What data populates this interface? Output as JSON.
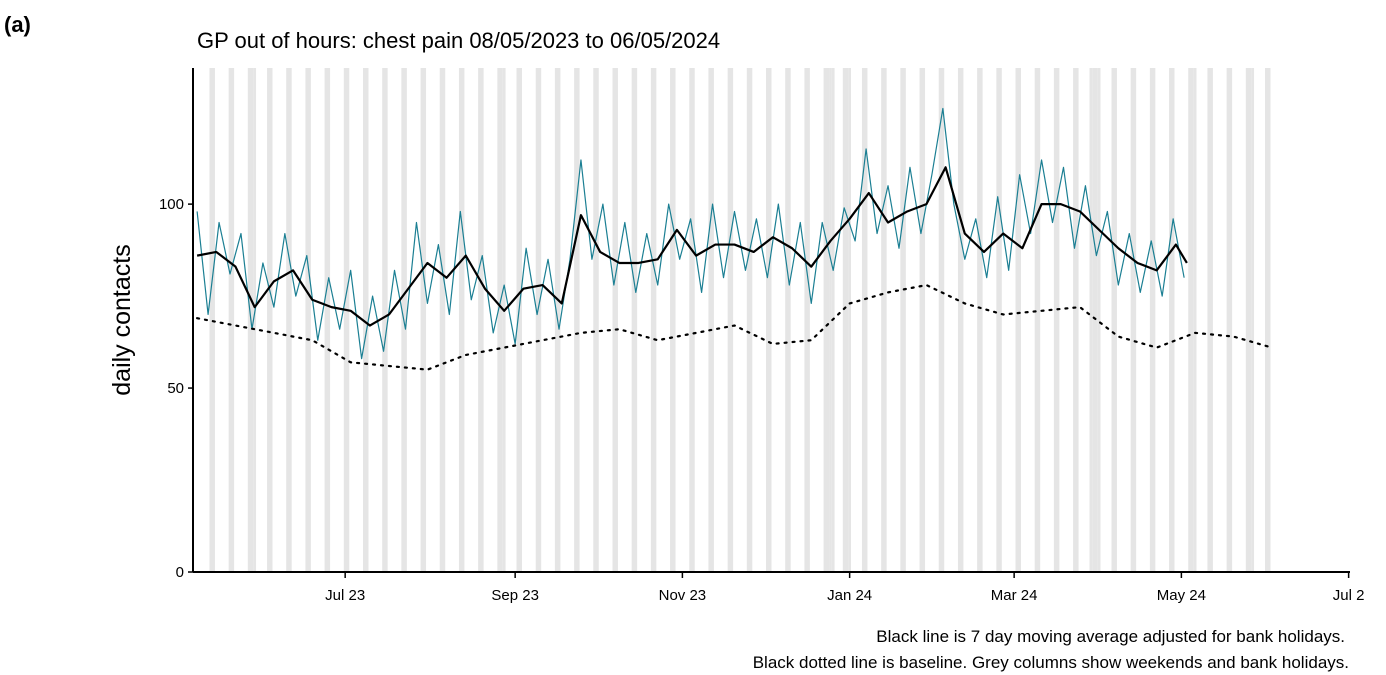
{
  "panel_label": "(a)",
  "chart_data": {
    "type": "line",
    "title": "GP out of hours: chest pain 08/05/2023 to 06/05/2024",
    "y_label": "daily contacts",
    "notes": [
      "Black line is 7 day moving average adjusted for bank holidays.",
      "Black dotted line is baseline. Grey columns show weekends and bank holidays."
    ],
    "xlim": [
      -1.5,
      420.5
    ],
    "ylim": [
      0,
      137
    ],
    "xticks": [
      {
        "value": 54,
        "label": "Jul 23"
      },
      {
        "value": 116,
        "label": "Sep 23"
      },
      {
        "value": 177,
        "label": "Nov 23"
      },
      {
        "value": 238,
        "label": "Jan 24"
      },
      {
        "value": 298,
        "label": "Mar 24"
      },
      {
        "value": 359,
        "label": "May 24"
      },
      {
        "value": 420,
        "label": "Jul 2"
      }
    ],
    "yticks": [
      0,
      50,
      100
    ],
    "shading": {
      "color": "#e5e5e5",
      "weekend_starts": [
        5,
        12,
        19,
        26,
        33,
        40,
        47,
        54,
        61,
        68,
        75,
        82,
        89,
        96,
        103,
        110,
        117,
        124,
        131,
        138,
        145,
        152,
        159,
        166,
        173,
        180,
        187,
        194,
        201,
        208,
        215,
        222,
        229,
        236,
        243,
        250,
        257,
        264,
        271,
        278,
        285,
        292,
        299,
        306,
        313,
        320,
        327,
        334,
        341,
        348,
        355,
        362,
        369,
        376,
        383,
        390
      ],
      "bank_holidays": [
        21,
        112,
        231,
        232,
        238,
        326,
        329,
        364,
        385
      ]
    },
    "series": [
      {
        "color": "#1b7f93",
        "style": "solid",
        "x": [
          0,
          4,
          8,
          12,
          16,
          20,
          24,
          28,
          32,
          36,
          40,
          44,
          48,
          52,
          56,
          60,
          64,
          68,
          72,
          76,
          80,
          84,
          88,
          92,
          96,
          100,
          104,
          108,
          112,
          116,
          120,
          124,
          128,
          132,
          136,
          140,
          144,
          148,
          152,
          156,
          160,
          164,
          168,
          172,
          176,
          180,
          184,
          188,
          192,
          196,
          200,
          204,
          208,
          212,
          216,
          220,
          224,
          228,
          232,
          236,
          240,
          244,
          248,
          252,
          256,
          260,
          264,
          268,
          272,
          276,
          280,
          284,
          288,
          292,
          296,
          300,
          304,
          308,
          312,
          316,
          320,
          324,
          328,
          332,
          336,
          340,
          344,
          348,
          352,
          356,
          360
        ],
        "values": [
          98,
          70,
          95,
          81,
          92,
          66,
          84,
          72,
          92,
          75,
          86,
          63,
          80,
          66,
          82,
          58,
          75,
          60,
          82,
          66,
          95,
          73,
          89,
          70,
          98,
          74,
          86,
          65,
          78,
          62,
          88,
          70,
          85,
          66,
          85,
          112,
          85,
          100,
          78,
          95,
          76,
          92,
          78,
          100,
          85,
          96,
          76,
          100,
          80,
          98,
          82,
          96,
          80,
          100,
          78,
          95,
          73,
          95,
          82,
          99,
          90,
          115,
          92,
          105,
          88,
          110,
          92,
          108,
          126,
          100,
          85,
          96,
          80,
          102,
          82,
          108,
          92,
          112,
          95,
          110,
          88,
          105,
          86,
          98,
          78,
          92,
          76,
          90,
          75,
          96,
          80
        ]
      },
      {
        "color": "#000000",
        "style": "solid",
        "x": [
          0,
          7,
          14,
          21,
          28,
          35,
          42,
          49,
          56,
          63,
          70,
          77,
          84,
          91,
          98,
          105,
          112,
          119,
          126,
          133,
          140,
          147,
          154,
          161,
          168,
          175,
          182,
          189,
          196,
          203,
          210,
          217,
          224,
          231,
          238,
          245,
          252,
          259,
          266,
          273,
          280,
          287,
          294,
          301,
          308,
          315,
          322,
          329,
          336,
          343,
          350,
          357,
          361
        ],
        "values": [
          86,
          87,
          83,
          72,
          79,
          82,
          74,
          72,
          71,
          67,
          70,
          77,
          84,
          80,
          86,
          77,
          71,
          77,
          78,
          73,
          97,
          87,
          84,
          84,
          85,
          93,
          86,
          89,
          89,
          87,
          91,
          88,
          83,
          90,
          96,
          103,
          95,
          98,
          100,
          110,
          92,
          87,
          92,
          88,
          100,
          100,
          98,
          93,
          88,
          84,
          82,
          89,
          84
        ]
      },
      {
        "color": "#000000",
        "style": "dotted",
        "x": [
          0,
          14,
          28,
          42,
          56,
          70,
          84,
          98,
          112,
          126,
          140,
          154,
          168,
          182,
          196,
          210,
          224,
          238,
          252,
          266,
          280,
          294,
          308,
          322,
          336,
          350,
          364,
          378,
          392
        ],
        "values": [
          69,
          67,
          65,
          63,
          57,
          56,
          55,
          59,
          61,
          63,
          65,
          66,
          63,
          65,
          67,
          62,
          63,
          73,
          76,
          78,
          73,
          70,
          71,
          72,
          64,
          61,
          65,
          64,
          61
        ]
      }
    ]
  }
}
